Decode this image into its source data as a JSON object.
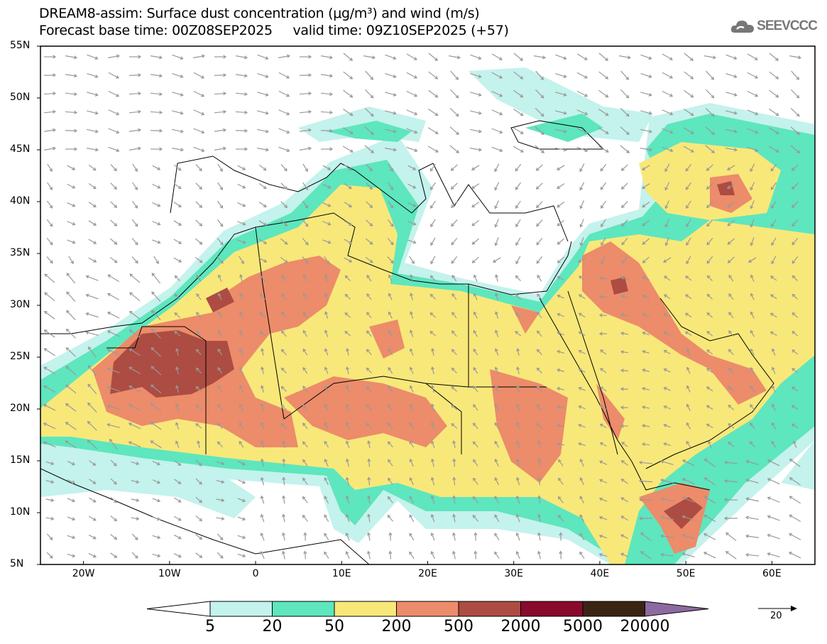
{
  "header": {
    "title": "DREAM8-assim: Surface dust concentration (μg/m³) and wind (m/s)",
    "subtitle": "Forecast base time: 00Z08SEP2025     valid time: 09Z10SEP2025 (+57)"
  },
  "logo": {
    "text": "SEEVCCC",
    "icon": "cloud-icon"
  },
  "axes": {
    "lat_labels": [
      "55N",
      "50N",
      "45N",
      "40N",
      "35N",
      "30N",
      "25N",
      "20N",
      "15N",
      "10N",
      "5N"
    ],
    "lon_labels": [
      "20W",
      "10W",
      "0",
      "10E",
      "20E",
      "30E",
      "40E",
      "50E",
      "60E"
    ],
    "lon_range": [
      -25,
      65
    ],
    "lat_range": [
      5,
      55
    ]
  },
  "colorbar": {
    "labels": [
      "5",
      "20",
      "50",
      "200",
      "500",
      "2000",
      "5000",
      "20000"
    ],
    "colors": [
      "#c4f2ec",
      "#5ee6be",
      "#f8e87a",
      "#ec8c6a",
      "#ad4c42",
      "#880a2c",
      "#3c2414"
    ],
    "under_color": "#ffffff",
    "over_color": "#8c6aa0",
    "units": "μg/m³"
  },
  "wind_vector_reference": {
    "label": "20",
    "units": "m/s"
  }
}
